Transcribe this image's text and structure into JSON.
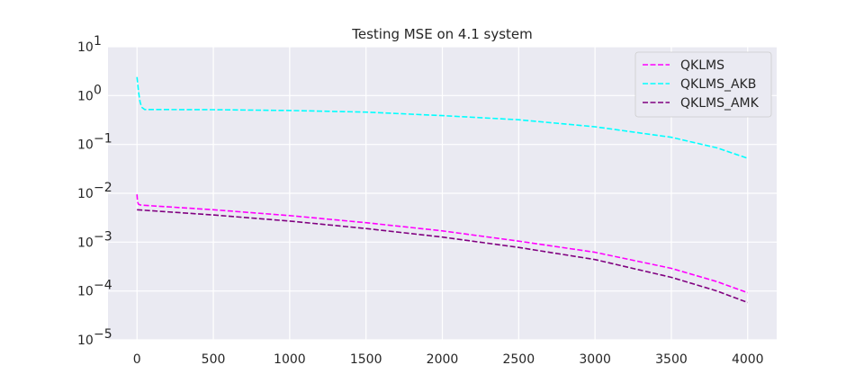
{
  "chart_data": {
    "type": "line",
    "title": "Testing MSE on 4.1 system",
    "xlabel": "",
    "ylabel": "",
    "xlim": [
      -190,
      4190
    ],
    "ylim": [
      1e-05,
      10
    ],
    "y_scale": "log",
    "x_ticks": [
      0,
      500,
      1000,
      1500,
      2000,
      2500,
      3000,
      3500,
      4000
    ],
    "x_tick_labels": [
      "0",
      "500",
      "1000",
      "1500",
      "2000",
      "2500",
      "3000",
      "3500",
      "4000"
    ],
    "y_ticks": [
      1e-05,
      0.0001,
      0.001,
      0.01,
      0.1,
      1,
      10
    ],
    "y_tick_labels": [
      {
        "base": "10",
        "exp": "−5"
      },
      {
        "base": "10",
        "exp": "−4"
      },
      {
        "base": "10",
        "exp": "−3"
      },
      {
        "base": "10",
        "exp": "−2"
      },
      {
        "base": "10",
        "exp": "−1"
      },
      {
        "base": "10",
        "exp": "0"
      },
      {
        "base": "10",
        "exp": "1"
      }
    ],
    "grid": true,
    "legend_position": "top-right",
    "series": [
      {
        "name": "QKLMS",
        "color": "#ff00ff",
        "x": [
          0,
          2,
          5,
          10,
          20,
          40,
          500,
          1000,
          1500,
          2000,
          2500,
          3000,
          3500,
          3800,
          4000
        ],
        "y": [
          0.0095,
          0.0075,
          0.0065,
          0.006,
          0.0058,
          0.0057,
          0.0046,
          0.0035,
          0.0025,
          0.0017,
          0.00105,
          0.00062,
          0.00029,
          0.000155,
          9.2e-05
        ]
      },
      {
        "name": "QKLMS_AKB",
        "color": "#00ffff",
        "x": [
          0,
          5,
          10,
          20,
          30,
          50,
          100,
          500,
          1000,
          1500,
          2000,
          2500,
          3000,
          3500,
          3800,
          4000
        ],
        "y": [
          2.4,
          1.7,
          1.2,
          0.75,
          0.58,
          0.52,
          0.52,
          0.515,
          0.495,
          0.46,
          0.39,
          0.32,
          0.23,
          0.14,
          0.085,
          0.052
        ]
      },
      {
        "name": "QKLMS_AMK",
        "color": "#800080",
        "x": [
          0,
          500,
          1000,
          1500,
          2000,
          2500,
          3000,
          3500,
          3800,
          4000
        ],
        "y": [
          0.0046,
          0.0036,
          0.0027,
          0.0019,
          0.00127,
          0.00078,
          0.00044,
          0.00019,
          0.0001,
          5.8e-05
        ]
      }
    ]
  }
}
